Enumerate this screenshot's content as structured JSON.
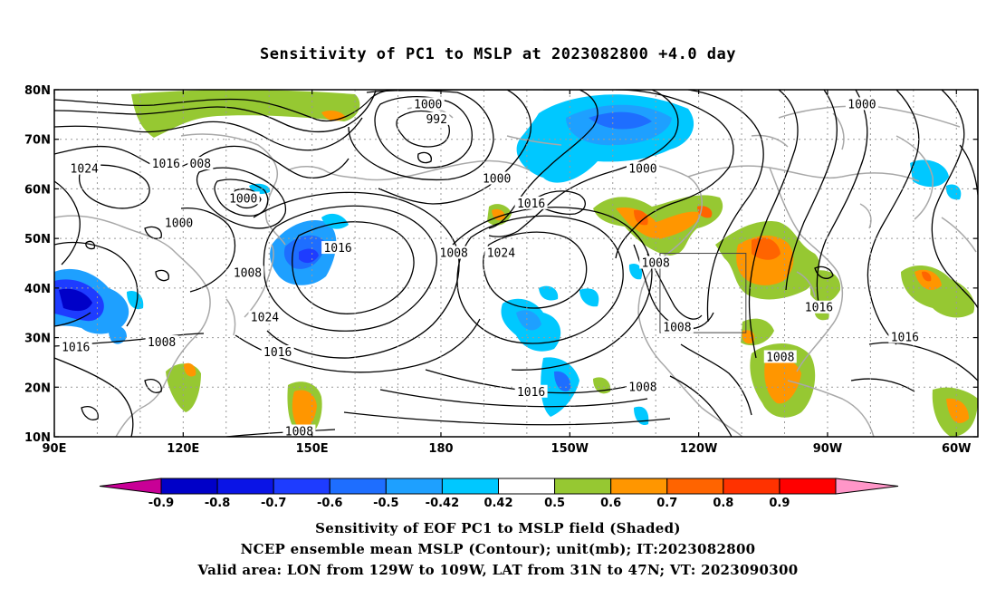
{
  "title": "Sensitivity of PC1 to MSLP at 2023082800 +4.0 day",
  "map": {
    "lon_labels": [
      "90E",
      "120E",
      "150E",
      "180",
      "150W",
      "120W",
      "90W",
      "60W"
    ],
    "lat_labels": [
      "80N",
      "70N",
      "60N",
      "50N",
      "40N",
      "30N",
      "20N",
      "10N"
    ],
    "contour_labels": [
      {
        "text": "1000",
        "lon": 177,
        "lat": 77
      },
      {
        "text": "992",
        "lon": 179,
        "lat": 74
      },
      {
        "text": "1024",
        "lon": 97,
        "lat": 64
      },
      {
        "text": "1016",
        "lon": 116,
        "lat": 65
      },
      {
        "text": "008",
        "lon": 124,
        "lat": 65
      },
      {
        "text": "1000",
        "lon": 134,
        "lat": 58
      },
      {
        "text": "1000",
        "lon": 119,
        "lat": 53
      },
      {
        "text": "1000",
        "lon": 193,
        "lat": 62
      },
      {
        "text": "1016",
        "lon": 201,
        "lat": 57
      },
      {
        "text": "1000",
        "lon": 227,
        "lat": 64
      },
      {
        "text": "1000",
        "lon": 278,
        "lat": 77
      },
      {
        "text": "1016",
        "lon": 156,
        "lat": 48
      },
      {
        "text": "1008",
        "lon": 183,
        "lat": 47
      },
      {
        "text": "1024",
        "lon": 194,
        "lat": 47
      },
      {
        "text": "1008",
        "lon": 230,
        "lat": 45
      },
      {
        "text": "1008",
        "lon": 135,
        "lat": 43
      },
      {
        "text": "1024",
        "lon": 139,
        "lat": 34
      },
      {
        "text": "1016",
        "lon": 268,
        "lat": 36
      },
      {
        "text": "1016",
        "lon": 95,
        "lat": 28
      },
      {
        "text": "1008",
        "lon": 115,
        "lat": 29
      },
      {
        "text": "1016",
        "lon": 142,
        "lat": 27
      },
      {
        "text": "1008",
        "lon": 235,
        "lat": 32
      },
      {
        "text": "1008",
        "lon": 259,
        "lat": 26
      },
      {
        "text": "1016",
        "lon": 288,
        "lat": 30
      },
      {
        "text": "1016",
        "lon": 201,
        "lat": 19
      },
      {
        "text": "1008",
        "lon": 227,
        "lat": 20
      },
      {
        "text": "1008",
        "lon": 147,
        "lat": 11
      }
    ],
    "valid_box": {
      "lon_min": 231,
      "lon_max": 251,
      "lat_min": 31,
      "lat_max": 47
    }
  },
  "colorbar": {
    "levels": [
      "-0.9",
      "-0.8",
      "-0.7",
      "-0.6",
      "-0.5",
      "-0.42",
      "0.42",
      "0.5",
      "0.6",
      "0.7",
      "0.8",
      "0.9"
    ],
    "colors": [
      "#0000c8",
      "#0a14e6",
      "#1e3cff",
      "#1e6eff",
      "#1ea0ff",
      "#00c8ff",
      "#ffffff",
      "#96c832",
      "#ff9600",
      "#ff6400",
      "#ff3200",
      "#ff0000"
    ],
    "low_end_color": "#c80096",
    "high_end_color": "#ff96c8"
  },
  "captions": {
    "line1": "Sensitivity of EOF PC1 to MSLP field (Shaded)",
    "line2": "NCEP ensemble mean MSLP (Contour); unit(mb); IT:2023082800",
    "line3": "Valid area: LON from 129W to 109W, LAT from 31N to 47N; VT: 2023090300"
  }
}
